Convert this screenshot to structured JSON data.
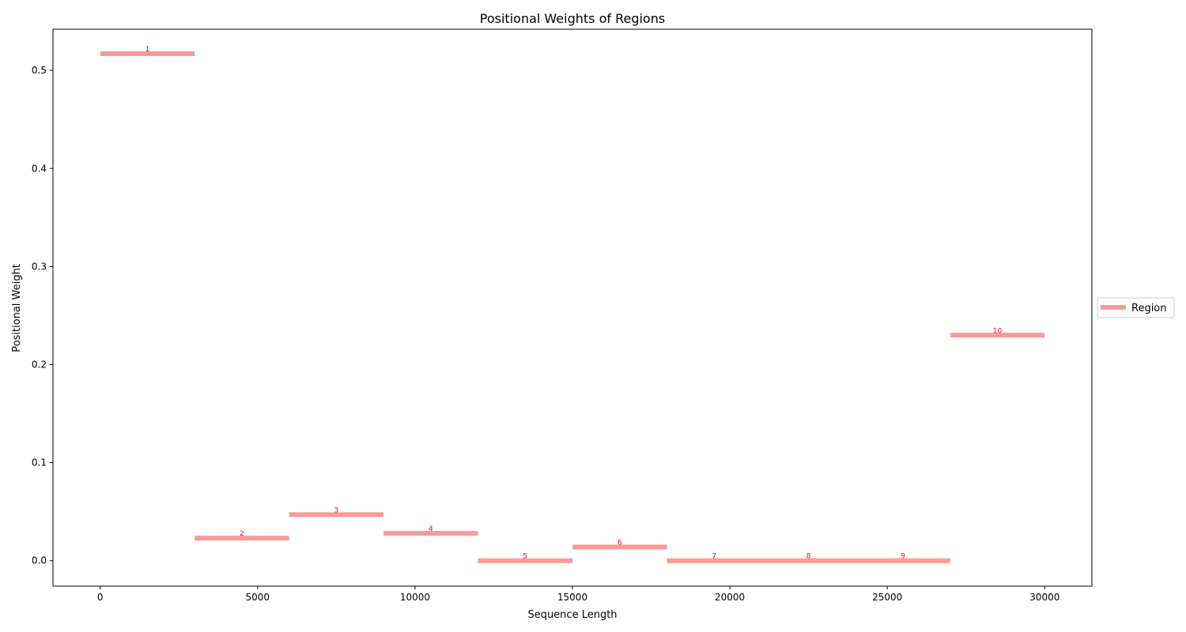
{
  "chart_data": {
    "type": "bar",
    "title": "Positional Weights of Regions",
    "xlabel": "Sequence Length",
    "ylabel": "Positional Weight",
    "xlim": [
      -1500,
      31500
    ],
    "ylim": [
      -0.026,
      0.542
    ],
    "xticks": [
      0,
      5000,
      10000,
      15000,
      20000,
      25000,
      30000
    ],
    "yticks": [
      0.0,
      0.1,
      0.2,
      0.3,
      0.4,
      0.5
    ],
    "ytick_labels": [
      "0.0",
      "0.1",
      "0.2",
      "0.3",
      "0.4",
      "0.5"
    ],
    "grid": false,
    "legend": {
      "position": "center-right",
      "entries": [
        {
          "label": "Region",
          "color": "#f99a9a"
        }
      ]
    },
    "series": [
      {
        "name": "Region",
        "color": "#f99a9a",
        "label_color": "#ff0000",
        "regions": [
          {
            "label": "1",
            "start": 0,
            "end": 3000,
            "weight": 0.517
          },
          {
            "label": "2",
            "start": 3000,
            "end": 6000,
            "weight": 0.023
          },
          {
            "label": "3",
            "start": 6000,
            "end": 9000,
            "weight": 0.047
          },
          {
            "label": "4",
            "start": 9000,
            "end": 12000,
            "weight": 0.028
          },
          {
            "label": "5",
            "start": 12000,
            "end": 15000,
            "weight": 0.0
          },
          {
            "label": "6",
            "start": 15000,
            "end": 18000,
            "weight": 0.014
          },
          {
            "label": "7",
            "start": 18000,
            "end": 21000,
            "weight": 0.0
          },
          {
            "label": "8",
            "start": 21000,
            "end": 24000,
            "weight": 0.0
          },
          {
            "label": "9",
            "start": 24000,
            "end": 27000,
            "weight": 0.0
          },
          {
            "label": "10",
            "start": 27000,
            "end": 30000,
            "weight": 0.23
          }
        ]
      }
    ]
  }
}
